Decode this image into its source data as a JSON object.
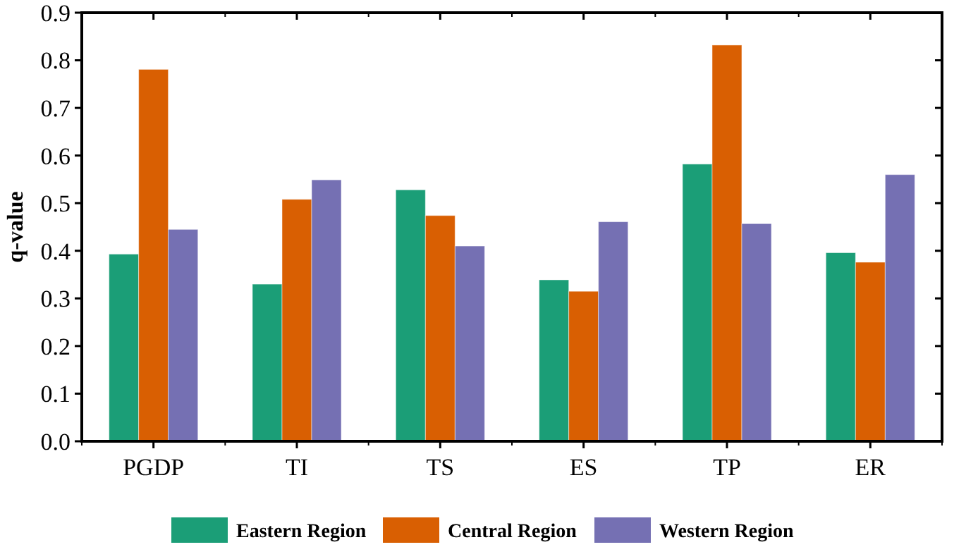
{
  "chart_data": {
    "type": "bar",
    "ylabel": "q-value",
    "categories": [
      "PGDP",
      "TI",
      "TS",
      "ES",
      "TP",
      "ER"
    ],
    "series": [
      {
        "name": "Eastern Region",
        "color": "#1b9e77",
        "values": [
          0.393,
          0.33,
          0.528,
          0.339,
          0.582,
          0.396
        ]
      },
      {
        "name": "Central Region",
        "color": "#d95f02",
        "values": [
          0.781,
          0.508,
          0.474,
          0.315,
          0.832,
          0.376
        ]
      },
      {
        "name": "Western Region",
        "color": "#7570b3",
        "values": [
          0.445,
          0.549,
          0.41,
          0.461,
          0.457,
          0.56
        ]
      }
    ],
    "ylim": [
      0,
      0.9
    ],
    "yticks": [
      {
        "value": 0,
        "label": "0.0"
      },
      0.1,
      0.2,
      0.3,
      0.4,
      0.5,
      0.6,
      0.7,
      0.8,
      0.9
    ],
    "legend": "bottom",
    "grid": false
  }
}
